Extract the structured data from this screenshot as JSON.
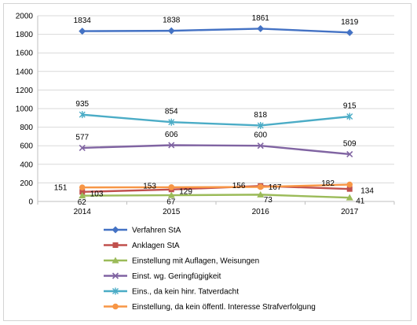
{
  "chart_data": {
    "type": "line",
    "categories": [
      "2014",
      "2015",
      "2016",
      "2017"
    ],
    "ylim": [
      0,
      2000
    ],
    "yticks": [
      0,
      200,
      400,
      600,
      800,
      1000,
      1200,
      1400,
      1600,
      1800,
      2000
    ],
    "grid": true,
    "legend_position": "bottom",
    "series": [
      {
        "name": "Verfahren StA",
        "values": [
          1834,
          1838,
          1861,
          1819
        ],
        "color": "#4472C4",
        "marker": "diamond"
      },
      {
        "name": "Anklagen StA",
        "values": [
          103,
          129,
          167,
          134
        ],
        "color": "#C0504D",
        "marker": "square"
      },
      {
        "name": "Einstellung mit Auflagen, Weisungen",
        "values": [
          62,
          67,
          73,
          41
        ],
        "color": "#9BBB59",
        "marker": "triangle"
      },
      {
        "name": "Einst. wg. Geringfügigkeit",
        "values": [
          577,
          606,
          600,
          509
        ],
        "color": "#8064A2",
        "marker": "x"
      },
      {
        "name": "Eins., da kein hinr. Tatverdacht",
        "values": [
          935,
          854,
          818,
          915
        ],
        "color": "#4BACC6",
        "marker": "star"
      },
      {
        "name": "Einstellung, da kein öffentl. Interesse Strafverfolgung",
        "values": [
          151,
          153,
          156,
          182
        ],
        "color": "#F79646",
        "marker": "circle"
      }
    ]
  }
}
